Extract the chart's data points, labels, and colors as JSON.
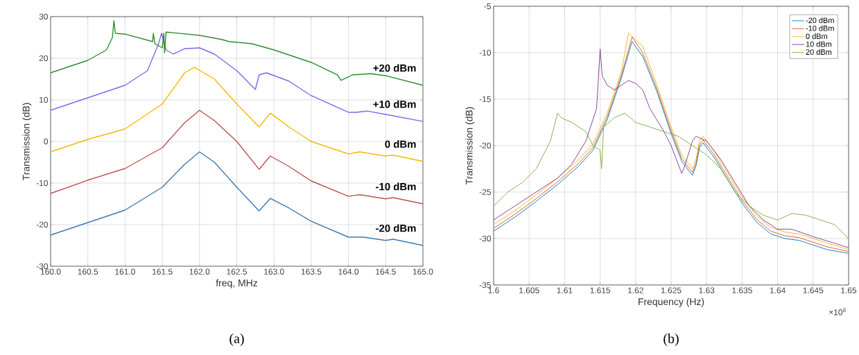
{
  "chart_data": [
    {
      "type": "line",
      "xlabel": "freq, MHz",
      "ylabel": "Transmission (dB)",
      "annotations": [
        "(a)"
      ],
      "legend": false,
      "grid": true,
      "line_style": "solid",
      "xlim": [
        160,
        165
      ],
      "ylim": [
        -30,
        30
      ],
      "xticks": [
        {
          "value": 160,
          "label": "160.0"
        },
        160.5,
        {
          "value": 161,
          "label": "161.0"
        },
        161.5,
        {
          "value": 162,
          "label": "162.0"
        },
        162.5,
        {
          "value": 163,
          "label": "163.0"
        },
        163.5,
        {
          "value": 164,
          "label": "164.0"
        },
        164.5,
        {
          "value": 165,
          "label": "165.0"
        }
      ],
      "yticks": [
        -30,
        -20,
        -10,
        0,
        10,
        20,
        30
      ],
      "series": [
        {
          "name": "-20 dBm",
          "color": "#3c78b4",
          "x": [
            160,
            160.5,
            161,
            161.5,
            161.8,
            162.0,
            162.2,
            162.5,
            162.8,
            162.95,
            163.2,
            163.5,
            164.0,
            164.2,
            164.5,
            164.6,
            165
          ],
          "values": [
            -22.5,
            -19.5,
            -16.5,
            -11,
            -5.5,
            -2.5,
            -5,
            -11,
            -16.7,
            -13.7,
            -16,
            -19.2,
            -23,
            -23,
            -23.8,
            -23.5,
            -25
          ]
        },
        {
          "name": "-10 dBm",
          "color": "#c0504d",
          "x": [
            160,
            160.5,
            161,
            161.5,
            161.8,
            162.0,
            162.2,
            162.5,
            162.8,
            162.95,
            163.2,
            163.5,
            164.0,
            164.15,
            164.5,
            164.6,
            165
          ],
          "values": [
            -12.5,
            -9.3,
            -6.5,
            -1.5,
            4.5,
            7.5,
            5,
            0,
            -6.7,
            -3.5,
            -6,
            -9.5,
            -13.2,
            -12.8,
            -13.8,
            -13.5,
            -15
          ]
        },
        {
          "name": "0 dBm",
          "color": "#f5b800",
          "x": [
            160,
            160.5,
            161,
            161.5,
            161.8,
            161.93,
            162.2,
            162.5,
            162.8,
            162.95,
            163.2,
            163.5,
            164.0,
            164.15,
            164.5,
            164.6,
            165
          ],
          "values": [
            -2.5,
            0.5,
            3,
            9,
            16.5,
            17.8,
            15,
            9,
            3.5,
            6.8,
            3.5,
            0,
            -3,
            -2.5,
            -3.5,
            -3.3,
            -4.8
          ]
        },
        {
          "name": "+10 dBm",
          "color": "#7b68ee",
          "x": [
            160,
            160.5,
            161,
            161.3,
            161.45,
            161.49,
            161.55,
            161.65,
            161.8,
            162.0,
            162.2,
            162.5,
            162.75,
            162.8,
            162.9,
            163.2,
            163.5,
            164.0,
            164.1,
            164.25,
            164.5,
            165
          ],
          "values": [
            7.5,
            10.5,
            13.5,
            17,
            23.5,
            26,
            22,
            21,
            22.3,
            22.5,
            21,
            17,
            12.5,
            16,
            16.5,
            14.5,
            11,
            7,
            7,
            7.3,
            6.5,
            4.8
          ]
        },
        {
          "name": "+20 dBm",
          "color": "#2e8b2e",
          "x": [
            160,
            160.5,
            160.75,
            160.83,
            160.85,
            160.87,
            161.0,
            161.37,
            161.38,
            161.4,
            161.5,
            161.52,
            161.53,
            161.55,
            162.0,
            162.3,
            162.4,
            162.7,
            163.0,
            163.5,
            163.85,
            163.9,
            164.0,
            164.05,
            164.3,
            164.5,
            165
          ],
          "values": [
            16.5,
            19.5,
            22,
            25,
            29,
            26,
            25.8,
            24,
            26,
            23.5,
            22.5,
            26,
            21.3,
            26.3,
            25.5,
            24.5,
            24,
            23.5,
            22,
            19,
            16,
            14.7,
            15.5,
            16,
            16.3,
            15.8,
            13.5
          ]
        }
      ]
    },
    {
      "type": "line",
      "xlabel": "Frequency (Hz)",
      "ylabel": "Transmission (dB)",
      "annotations": [
        "×10$^{8}$",
        "(b)"
      ],
      "legend": "top right",
      "grid": true,
      "line_style": "solid",
      "xlim": [
        1.6,
        1.65
      ],
      "ylim": [
        -35,
        -5
      ],
      "xticks": [
        1.6,
        1.605,
        1.61,
        1.615,
        1.62,
        1.625,
        1.63,
        1.635,
        1.64,
        1.645,
        1.65
      ],
      "yticks": [
        -35,
        -30,
        -25,
        -20,
        -15,
        -10,
        -5
      ],
      "series": [
        {
          "name": "-20 dBm",
          "color": "#0072bd",
          "x": [
            1.6,
            1.603,
            1.606,
            1.609,
            1.612,
            1.614,
            1.616,
            1.618,
            1.6195,
            1.621,
            1.623,
            1.625,
            1.6265,
            1.627,
            1.628,
            1.6285,
            1.629,
            1.6295,
            1.631,
            1.633,
            1.635,
            1.637,
            1.639,
            1.641,
            1.643,
            1.645,
            1.647,
            1.65
          ],
          "values": [
            -29.2,
            -27.7,
            -26,
            -24.2,
            -22.2,
            -20.5,
            -17.2,
            -12.7,
            -8.8,
            -10.4,
            -14.2,
            -18.7,
            -21.7,
            -22.2,
            -23.2,
            -22.2,
            -20.2,
            -19.7,
            -21.2,
            -23.7,
            -26.2,
            -28.2,
            -29.5,
            -30,
            -30.2,
            -30.7,
            -31.2,
            -31.6
          ]
        },
        {
          "name": "-10 dBm",
          "color": "#d95319",
          "x": [
            1.6,
            1.603,
            1.606,
            1.609,
            1.612,
            1.614,
            1.616,
            1.618,
            1.6195,
            1.621,
            1.623,
            1.625,
            1.6265,
            1.627,
            1.628,
            1.6285,
            1.629,
            1.6295,
            1.631,
            1.633,
            1.635,
            1.637,
            1.639,
            1.641,
            1.643,
            1.645,
            1.647,
            1.65
          ],
          "values": [
            -28.9,
            -27.4,
            -25.7,
            -23.9,
            -21.9,
            -20.2,
            -16.9,
            -12.4,
            -8.3,
            -10,
            -13.9,
            -18.4,
            -21.4,
            -21.9,
            -22.9,
            -21.9,
            -19.9,
            -19.4,
            -20.9,
            -23.4,
            -25.9,
            -27.9,
            -29.2,
            -29.7,
            -29.9,
            -30.4,
            -30.9,
            -31.4
          ]
        },
        {
          "name": "0 dBm",
          "color": "#edb120",
          "x": [
            1.6,
            1.603,
            1.606,
            1.609,
            1.612,
            1.614,
            1.616,
            1.618,
            1.619,
            1.621,
            1.623,
            1.625,
            1.6265,
            1.627,
            1.628,
            1.6285,
            1.629,
            1.6295,
            1.631,
            1.633,
            1.635,
            1.637,
            1.639,
            1.641,
            1.643,
            1.645,
            1.647,
            1.65
          ],
          "values": [
            -28.5,
            -27,
            -25.3,
            -23.5,
            -21.5,
            -19.8,
            -16.5,
            -12,
            -7.9,
            -9.3,
            -13.5,
            -18,
            -21,
            -21.5,
            -22.5,
            -21.5,
            -19.5,
            -19,
            -20.5,
            -23,
            -25.5,
            -27.5,
            -28.8,
            -29.3,
            -29.5,
            -30,
            -30.5,
            -31.2
          ]
        },
        {
          "name": "10 dBm",
          "color": "#7e2f8e",
          "x": [
            1.6,
            1.603,
            1.606,
            1.609,
            1.611,
            1.613,
            1.6145,
            1.615,
            1.6153,
            1.616,
            1.617,
            1.618,
            1.619,
            1.62,
            1.621,
            1.622,
            1.624,
            1.625,
            1.626,
            1.6265,
            1.627,
            1.628,
            1.6285,
            1.63,
            1.632,
            1.634,
            1.636,
            1.638,
            1.64,
            1.642,
            1.645,
            1.648,
            1.65
          ],
          "values": [
            -28,
            -26.5,
            -25,
            -23.5,
            -22,
            -19.5,
            -16,
            -9.6,
            -12.5,
            -13.5,
            -14,
            -13.5,
            -13,
            -13.3,
            -14,
            -16,
            -18.5,
            -20,
            -22,
            -23,
            -22,
            -19.5,
            -19,
            -19.5,
            -21.5,
            -24,
            -26.5,
            -28,
            -29,
            -29,
            -29.8,
            -30.5,
            -31
          ]
        },
        {
          "name": "20 dBm",
          "color": "#77ac30",
          "x": [
            1.6,
            1.602,
            1.604,
            1.606,
            1.608,
            1.609,
            1.6095,
            1.611,
            1.613,
            1.614,
            1.615,
            1.6152,
            1.6155,
            1.617,
            1.6185,
            1.62,
            1.622,
            1.624,
            1.626,
            1.628,
            1.63,
            1.632,
            1.634,
            1.636,
            1.638,
            1.64,
            1.642,
            1.644,
            1.646,
            1.648,
            1.65
          ],
          "values": [
            -26.5,
            -25,
            -24,
            -22.5,
            -19.5,
            -16.5,
            -17,
            -17.5,
            -18.5,
            -20,
            -20.5,
            -22.5,
            -18,
            -17,
            -16.5,
            -17.5,
            -18,
            -18.5,
            -19,
            -20,
            -21,
            -22.5,
            -25,
            -26.5,
            -27.5,
            -28,
            -27.3,
            -27.5,
            -28,
            -28.5,
            -30
          ]
        }
      ]
    }
  ]
}
